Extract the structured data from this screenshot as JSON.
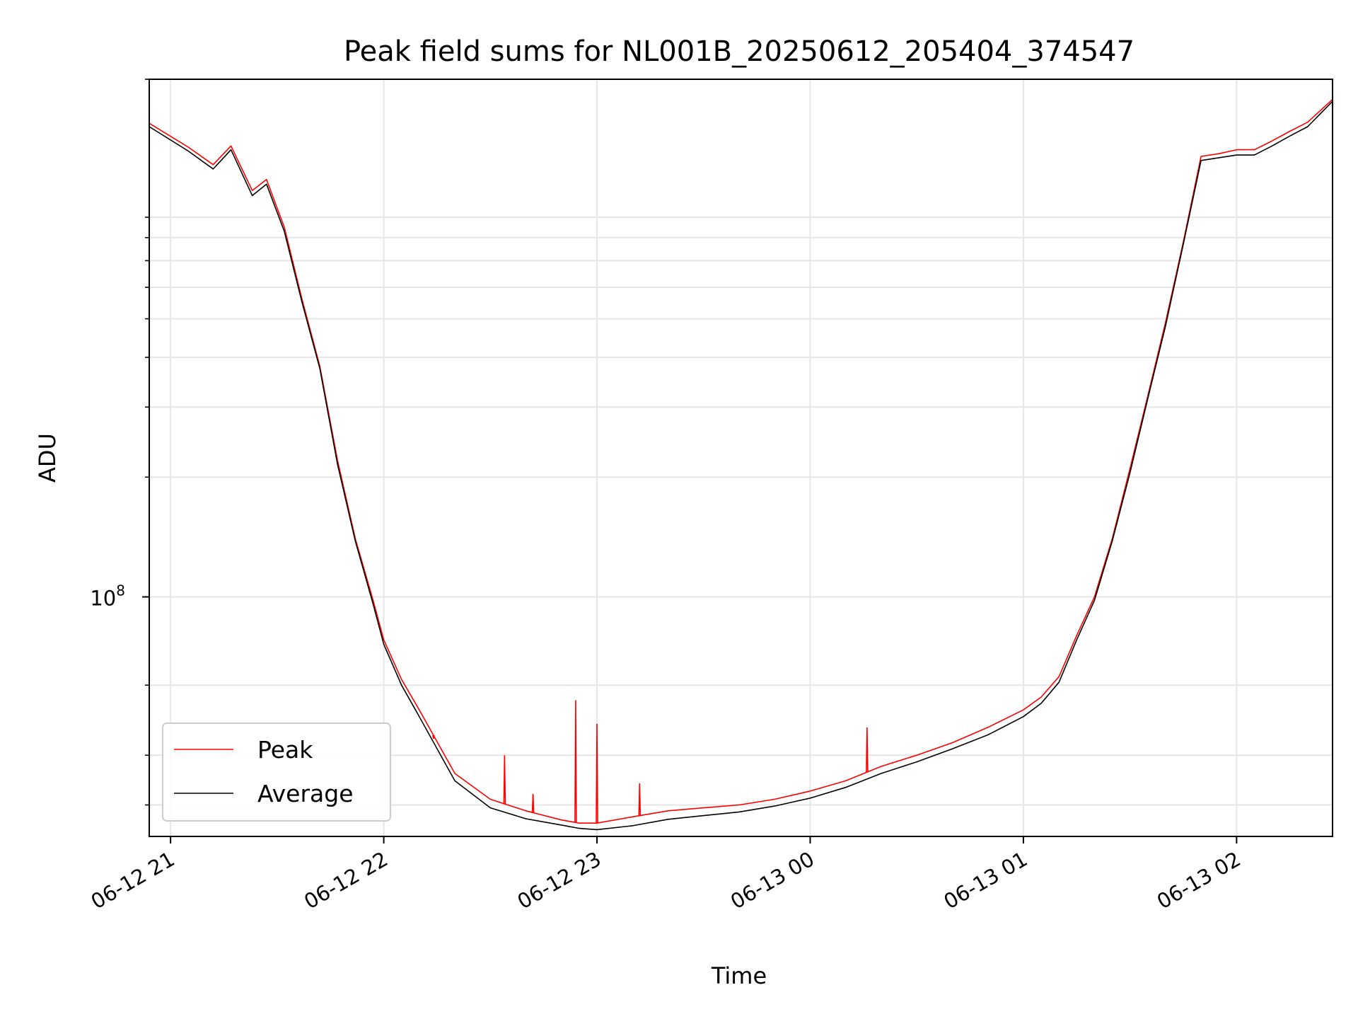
{
  "chart_data": {
    "type": "line",
    "title": "Peak field sums for NL001B_20250612_205404_374547",
    "xlabel": "Time",
    "ylabel": "ADU",
    "x_tick_labels": [
      "06-12 21",
      "06-12 22",
      "06-12 23",
      "06-13 00",
      "06-13 01",
      "06-13 02"
    ],
    "y_tick_labels": [
      {
        "base": "10",
        "exp": "8"
      }
    ],
    "x_range": [
      "06-12 20:54",
      "06-13 02:27"
    ],
    "y_scale": "log",
    "ylim": [
      25000000,
      2000000000
    ],
    "grid": true,
    "legend_position": "lower-left",
    "series": [
      {
        "name": "Peak",
        "color": "#ff0000",
        "x": [
          "06-12 20:54",
          "06-12 21:05",
          "06-12 21:12",
          "06-12 21:17",
          "06-12 21:23",
          "06-12 21:27",
          "06-12 21:32",
          "06-12 21:37",
          "06-12 21:42",
          "06-12 21:47",
          "06-12 21:52",
          "06-12 21:57",
          "06-12 22:00",
          "06-12 22:05",
          "06-12 22:10",
          "06-12 22:20",
          "06-12 22:30",
          "06-12 22:40",
          "06-12 22:50",
          "06-12 22:55",
          "06-12 23:00",
          "06-12 23:10",
          "06-12 23:20",
          "06-12 23:30",
          "06-12 23:40",
          "06-12 23:50",
          "06-13 00:00",
          "06-13 00:10",
          "06-13 00:20",
          "06-13 00:30",
          "06-13 00:40",
          "06-13 00:50",
          "06-13 01:00",
          "06-13 01:05",
          "06-13 01:10",
          "06-13 01:15",
          "06-13 01:20",
          "06-13 01:25",
          "06-13 01:30",
          "06-13 01:35",
          "06-13 01:40",
          "06-13 01:45",
          "06-13 01:50",
          "06-13 01:55",
          "06-13 02:00",
          "06-13 02:05",
          "06-13 02:10",
          "06-13 02:15",
          "06-13 02:20",
          "06-13 02:27"
        ],
        "y": [
          1550000000,
          1350000000,
          1220000000,
          1360000000,
          1050000000,
          1120000000,
          850000000,
          560000000,
          380000000,
          220000000,
          140000000,
          98000000,
          78000000,
          62000000,
          52000000,
          36000000,
          31000000,
          29000000,
          27500000,
          27000000,
          27000000,
          28000000,
          29000000,
          29500000,
          30000000,
          31000000,
          32500000,
          34500000,
          37500000,
          40000000,
          43000000,
          47000000,
          52000000,
          56000000,
          63000000,
          80000000,
          100000000,
          140000000,
          210000000,
          320000000,
          490000000,
          780000000,
          1280000000,
          1300000000,
          1330000000,
          1330000000,
          1400000000,
          1480000000,
          1560000000,
          1780000000
        ],
        "spikes": [
          {
            "x": "06-12 22:14",
            "y": 44000000
          },
          {
            "x": "06-12 22:34",
            "y": 40000000
          },
          {
            "x": "06-12 22:42",
            "y": 32000000
          },
          {
            "x": "06-12 22:54",
            "y": 55000000
          },
          {
            "x": "06-12 23:00",
            "y": 48000000
          },
          {
            "x": "06-12 23:12",
            "y": 34000000
          },
          {
            "x": "06-13 00:16",
            "y": 47000000
          }
        ]
      },
      {
        "name": "Average",
        "color": "#000000",
        "x": [
          "06-12 20:54",
          "06-12 21:05",
          "06-12 21:12",
          "06-12 21:17",
          "06-12 21:23",
          "06-12 21:27",
          "06-12 21:32",
          "06-12 21:37",
          "06-12 21:42",
          "06-12 21:47",
          "06-12 21:52",
          "06-12 21:57",
          "06-12 22:00",
          "06-12 22:05",
          "06-12 22:10",
          "06-12 22:20",
          "06-12 22:30",
          "06-12 22:40",
          "06-12 22:50",
          "06-12 22:55",
          "06-12 23:00",
          "06-12 23:10",
          "06-12 23:20",
          "06-12 23:30",
          "06-12 23:40",
          "06-12 23:50",
          "06-13 00:00",
          "06-13 00:10",
          "06-13 00:20",
          "06-13 00:30",
          "06-13 00:40",
          "06-13 00:50",
          "06-13 01:00",
          "06-13 01:05",
          "06-13 01:10",
          "06-13 01:15",
          "06-13 01:20",
          "06-13 01:25",
          "06-13 01:30",
          "06-13 01:35",
          "06-13 01:40",
          "06-13 01:45",
          "06-13 01:50",
          "06-13 01:55",
          "06-13 02:00",
          "06-13 02:05",
          "06-13 02:10",
          "06-13 02:15",
          "06-13 02:20",
          "06-13 02:27"
        ],
        "y": [
          1520000000,
          1320000000,
          1190000000,
          1330000000,
          1020000000,
          1090000000,
          830000000,
          550000000,
          375000000,
          215000000,
          138000000,
          96000000,
          76000000,
          60000000,
          50000000,
          34500000,
          29500000,
          27700000,
          26700000,
          26200000,
          26000000,
          26600000,
          27600000,
          28200000,
          28800000,
          29800000,
          31200000,
          33200000,
          36000000,
          38500000,
          41500000,
          45000000,
          50000000,
          54000000,
          61000000,
          78000000,
          98000000,
          138000000,
          205000000,
          315000000,
          480000000,
          770000000,
          1250000000,
          1270000000,
          1290000000,
          1290000000,
          1360000000,
          1440000000,
          1520000000,
          1760000000
        ]
      }
    ]
  }
}
